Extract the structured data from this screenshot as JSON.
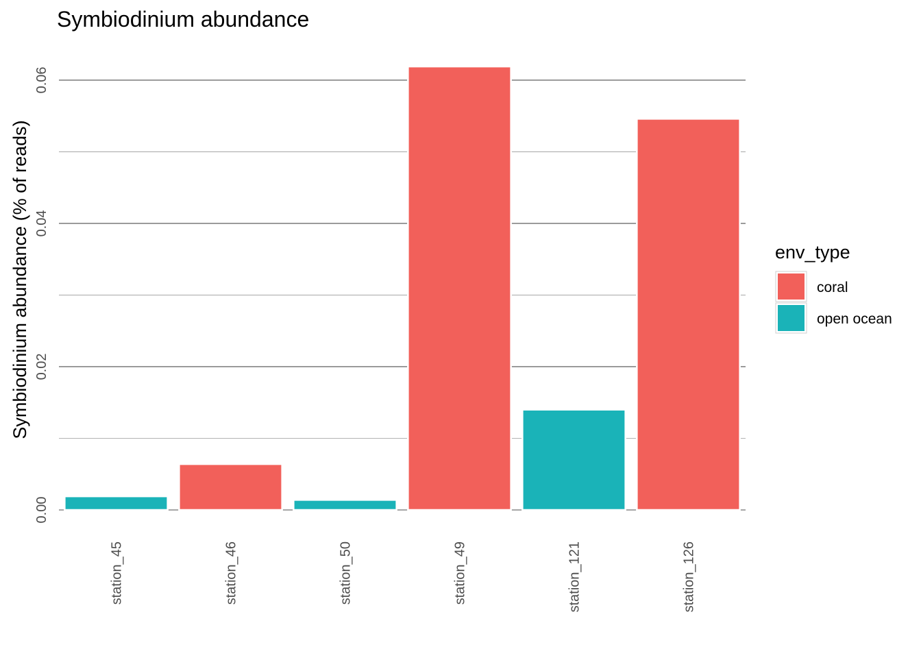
{
  "chart_data": {
    "type": "bar",
    "title": "Symbiodinium abundance",
    "xlabel": "",
    "ylabel": "Symbiodinium abundance (% of reads)",
    "categories": [
      "station_45",
      "station_46",
      "station_50",
      "station_49",
      "station_121",
      "station_126"
    ],
    "values": [
      0.0019,
      0.0064,
      0.0014,
      0.0619,
      0.014,
      0.0546
    ],
    "groups": [
      "open ocean",
      "coral",
      "open ocean",
      "coral",
      "open ocean",
      "coral"
    ],
    "ylim": [
      0,
      0.062
    ],
    "y_ticks": [
      0.0,
      0.02,
      0.04,
      0.06
    ],
    "y_tick_labels": [
      "0.00",
      "0.02",
      "0.04",
      "0.06"
    ],
    "grid": true,
    "legend": {
      "title": "env_type",
      "placement": "right",
      "entries": [
        {
          "label": "coral",
          "color": "#F2605A"
        },
        {
          "label": "open ocean",
          "color": "#1AB3B8"
        }
      ]
    }
  }
}
